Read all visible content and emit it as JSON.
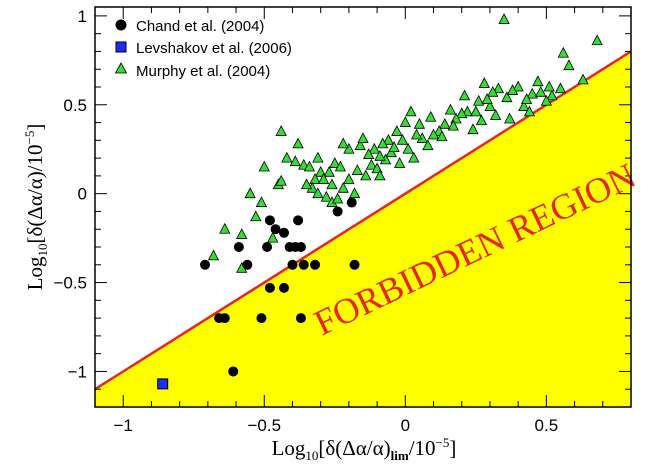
{
  "chart_data": {
    "type": "scatter",
    "xlabel_parts": {
      "pre": "Log",
      "sub": "10",
      "main": "[δ(Δα/α)",
      "lim": "lim",
      "div": "/10",
      "sup": "−5",
      "end": "]"
    },
    "ylabel_parts": {
      "pre": "Log",
      "sub": "10",
      "main": "[δ(Δα/α)/10",
      "sup": "−5",
      "end": "]"
    },
    "xlim": [
      -1.1,
      0.8
    ],
    "ylim": [
      -1.2,
      1.05
    ],
    "x_ticks": [
      {
        "v": -1,
        "label": "−1"
      },
      {
        "v": -0.5,
        "label": "−0.5"
      },
      {
        "v": 0,
        "label": "0"
      },
      {
        "v": 0.5,
        "label": "0.5"
      }
    ],
    "y_ticks": [
      {
        "v": -1,
        "label": "−1"
      },
      {
        "v": -0.5,
        "label": "−0.5"
      },
      {
        "v": 0,
        "label": "0"
      },
      {
        "v": 0.5,
        "label": "0.5"
      },
      {
        "v": 1,
        "label": "1"
      }
    ],
    "forbidden_label": "FORBIDDEN REGION",
    "boundary_line": {
      "x": [
        -1.1,
        0.8
      ],
      "y": [
        -1.1,
        0.8
      ],
      "color": "#e8241c"
    },
    "forbidden_fill": "#ffff00",
    "legend_position": "top-left",
    "series": [
      {
        "name": "Chand et al. (2004)",
        "marker": "circle",
        "color": "#000000",
        "points": [
          [
            -0.71,
            -0.4
          ],
          [
            -0.59,
            -0.3
          ],
          [
            -0.56,
            -0.4
          ],
          [
            -0.66,
            -0.7
          ],
          [
            -0.64,
            -0.7
          ],
          [
            -0.61,
            -1.0
          ],
          [
            -0.51,
            -0.7
          ],
          [
            -0.48,
            -0.53
          ],
          [
            -0.43,
            -0.53
          ],
          [
            -0.37,
            -0.7
          ],
          [
            -0.48,
            -0.15
          ],
          [
            -0.46,
            -0.2
          ],
          [
            -0.43,
            -0.22
          ],
          [
            -0.41,
            -0.3
          ],
          [
            -0.39,
            -0.3
          ],
          [
            -0.37,
            -0.3
          ],
          [
            -0.49,
            -0.3
          ],
          [
            -0.4,
            -0.4
          ],
          [
            -0.36,
            -0.4
          ],
          [
            -0.32,
            -0.4
          ],
          [
            -0.18,
            -0.4
          ],
          [
            -0.38,
            -0.15
          ],
          [
            -0.24,
            -0.1
          ],
          [
            -0.19,
            -0.05
          ]
        ]
      },
      {
        "name": "Levshakov et al. (2006)",
        "marker": "square",
        "color": "#1c2dff",
        "points": [
          [
            -0.86,
            -1.07
          ]
        ]
      },
      {
        "name": "Murphy et al. (2004)",
        "marker": "triangle",
        "color": "#33dd33",
        "points": [
          [
            0.35,
            0.98
          ],
          [
            0.68,
            0.86
          ],
          [
            0.56,
            0.79
          ],
          [
            0.4,
            0.6
          ],
          [
            0.47,
            0.63
          ],
          [
            0.45,
            0.56
          ],
          [
            0.52,
            0.55
          ],
          [
            0.55,
            0.59
          ],
          [
            0.63,
            0.64
          ],
          [
            0.28,
            0.62
          ],
          [
            0.33,
            0.59
          ],
          [
            0.36,
            0.54
          ],
          [
            0.38,
            0.58
          ],
          [
            0.42,
            0.49
          ],
          [
            0.3,
            0.49
          ],
          [
            0.27,
            0.41
          ],
          [
            0.24,
            0.36
          ],
          [
            0.31,
            0.57
          ],
          [
            0.26,
            0.52
          ],
          [
            0.22,
            0.46
          ],
          [
            0.2,
            0.45
          ],
          [
            0.18,
            0.42
          ],
          [
            0.17,
            0.38
          ],
          [
            0.14,
            0.39
          ],
          [
            0.12,
            0.35
          ],
          [
            0.1,
            0.33
          ],
          [
            0.06,
            0.31
          ],
          [
            0.08,
            0.27
          ],
          [
            0.03,
            0.2
          ],
          [
            0.01,
            0.25
          ],
          [
            0.04,
            0.33
          ],
          [
            0.0,
            0.4
          ],
          [
            0.02,
            0.46
          ],
          [
            -0.03,
            0.35
          ],
          [
            -0.06,
            0.3
          ],
          [
            -0.08,
            0.28
          ],
          [
            -0.11,
            0.25
          ],
          [
            -0.13,
            0.22
          ],
          [
            -0.16,
            0.27
          ],
          [
            -0.15,
            0.31
          ],
          [
            -0.2,
            0.25
          ],
          [
            -0.22,
            0.28
          ],
          [
            -0.25,
            0.17
          ],
          [
            -0.27,
            0.12
          ],
          [
            -0.3,
            0.12
          ],
          [
            -0.32,
            0.08
          ],
          [
            -0.33,
            0.03
          ],
          [
            -0.35,
            0.05
          ],
          [
            -0.31,
            0.0
          ],
          [
            -0.28,
            -0.02
          ],
          [
            -0.26,
            -0.05
          ],
          [
            -0.24,
            -0.03
          ],
          [
            -0.22,
            0.03
          ],
          [
            -0.2,
            0.08
          ],
          [
            -0.18,
            0.0
          ],
          [
            -0.14,
            0.1
          ],
          [
            -0.12,
            0.16
          ],
          [
            -0.1,
            0.14
          ],
          [
            -0.07,
            0.19
          ],
          [
            -0.05,
            0.23
          ],
          [
            -0.02,
            0.17
          ],
          [
            -0.36,
            0.16
          ],
          [
            -0.39,
            0.18
          ],
          [
            -0.44,
            0.35
          ],
          [
            -0.42,
            0.2
          ],
          [
            -0.45,
            0.05
          ],
          [
            -0.5,
            0.15
          ],
          [
            -0.51,
            -0.05
          ],
          [
            -0.53,
            -0.13
          ],
          [
            -0.55,
            0.0
          ],
          [
            -0.58,
            -0.23
          ],
          [
            -0.64,
            -0.2
          ],
          [
            -0.68,
            -0.35
          ],
          [
            -0.58,
            -0.42
          ],
          [
            -0.47,
            -0.25
          ],
          [
            -0.44,
            0.07
          ],
          [
            -0.38,
            0.28
          ],
          [
            -0.34,
            0.15
          ],
          [
            -0.29,
            0.08
          ],
          [
            -0.23,
            0.15
          ],
          [
            -0.17,
            0.13
          ],
          [
            -0.09,
            0.1
          ],
          [
            0.05,
            0.39
          ],
          [
            0.09,
            0.43
          ],
          [
            0.13,
            0.32
          ],
          [
            0.16,
            0.47
          ],
          [
            0.21,
            0.55
          ],
          [
            0.25,
            0.46
          ],
          [
            0.29,
            0.53
          ],
          [
            0.32,
            0.44
          ],
          [
            0.37,
            0.42
          ],
          [
            0.43,
            0.53
          ],
          [
            0.48,
            0.57
          ],
          [
            0.51,
            0.6
          ],
          [
            0.58,
            0.72
          ],
          [
            0.44,
            0.46
          ],
          [
            0.5,
            0.52
          ],
          [
            -0.01,
            0.3
          ],
          [
            -0.04,
            0.26
          ],
          [
            -0.09,
            0.21
          ],
          [
            -0.26,
            0.05
          ],
          [
            -0.31,
            0.2
          ]
        ]
      }
    ]
  }
}
